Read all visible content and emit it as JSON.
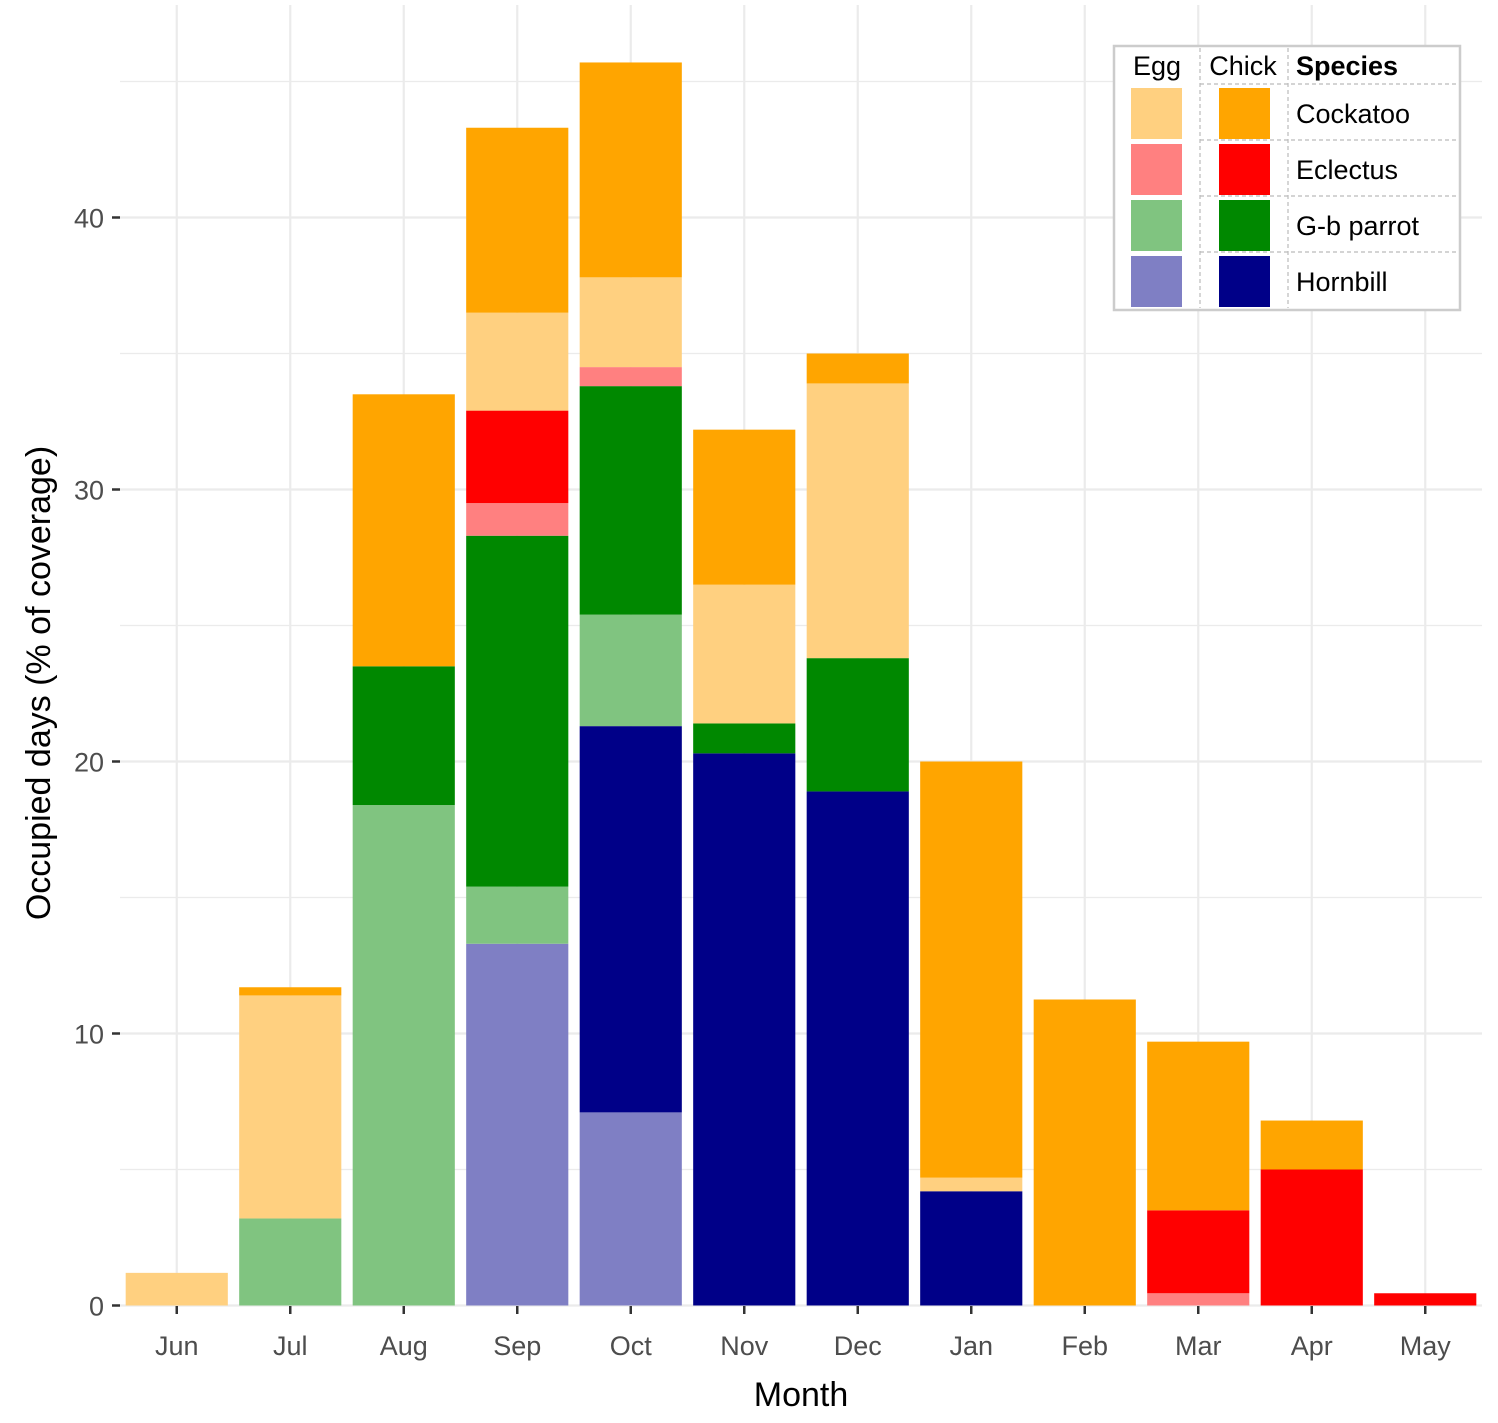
{
  "chart_data": {
    "type": "bar",
    "stacked": true,
    "title": "",
    "xlabel": "Month",
    "ylabel": "Occupied days (% of coverage)",
    "ylim": [
      0,
      47.8
    ],
    "yticks": [
      0,
      10,
      20,
      30,
      40
    ],
    "grid": true,
    "categories": [
      "Jun",
      "Jul",
      "Aug",
      "Sep",
      "Oct",
      "Nov",
      "Dec",
      "Jan",
      "Feb",
      "Mar",
      "Apr",
      "May"
    ],
    "series": [
      {
        "name": "Hornbill Egg",
        "species": "Hornbill",
        "stage": "Egg",
        "color": "#7f7fc4",
        "values": [
          0,
          0,
          0,
          13.3,
          7.1,
          0,
          0,
          0,
          0,
          0,
          0,
          0
        ]
      },
      {
        "name": "Hornbill Chick",
        "species": "Hornbill",
        "stage": "Chick",
        "color": "#000088",
        "values": [
          0,
          0,
          0,
          0,
          14.2,
          20.3,
          18.9,
          4.2,
          0,
          0,
          0,
          0
        ]
      },
      {
        "name": "G-b parrot Egg",
        "species": "G-b parrot",
        "stage": "Egg",
        "color": "#80c480",
        "values": [
          0,
          3.2,
          18.4,
          2.1,
          4.1,
          0,
          0,
          0,
          0,
          0,
          0,
          0
        ]
      },
      {
        "name": "G-b parrot Chick",
        "species": "G-b parrot",
        "stage": "Chick",
        "color": "#008800",
        "values": [
          0,
          0,
          5.1,
          12.9,
          8.4,
          1.1,
          4.9,
          0,
          0,
          0,
          0,
          0
        ]
      },
      {
        "name": "Eclectus Egg",
        "species": "Eclectus",
        "stage": "Egg",
        "color": "#ff8080",
        "values": [
          0,
          0,
          0,
          1.2,
          0.7,
          0,
          0,
          0,
          0,
          0.45,
          0,
          0
        ]
      },
      {
        "name": "Eclectus Chick",
        "species": "Eclectus",
        "stage": "Chick",
        "color": "#ff0000",
        "values": [
          0,
          0,
          0,
          3.4,
          0,
          0,
          0,
          0,
          0,
          3.05,
          5.0,
          0.45
        ]
      },
      {
        "name": "Cockatoo Egg",
        "species": "Cockatoo",
        "stage": "Egg",
        "color": "#ffd080",
        "values": [
          1.2,
          8.2,
          0,
          3.6,
          3.3,
          5.1,
          10.1,
          0.5,
          0,
          0,
          0,
          0
        ]
      },
      {
        "name": "Cockatoo Chick",
        "species": "Cockatoo",
        "stage": "Chick",
        "color": "#ffa500",
        "values": [
          0,
          0.3,
          10.0,
          6.8,
          7.9,
          5.7,
          1.1,
          15.3,
          11.25,
          6.2,
          1.8,
          0
        ]
      }
    ],
    "legend": {
      "placement": "top-right",
      "headers": [
        "Egg",
        "Chick",
        "Species"
      ],
      "rows": [
        {
          "species": "Cockatoo",
          "egg_color": "#ffd080",
          "chick_color": "#ffa500"
        },
        {
          "species": "Eclectus",
          "egg_color": "#ff8080",
          "chick_color": "#ff0000"
        },
        {
          "species": "G-b parrot",
          "egg_color": "#80c480",
          "chick_color": "#008800"
        },
        {
          "species": "Hornbill",
          "egg_color": "#7f7fc4",
          "chick_color": "#000088"
        }
      ]
    }
  }
}
